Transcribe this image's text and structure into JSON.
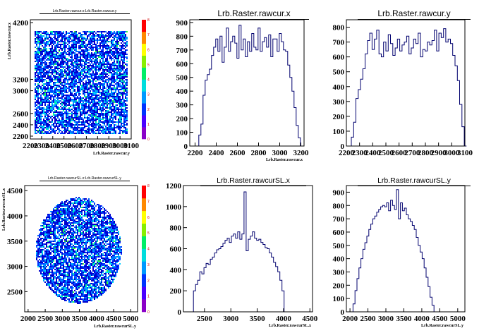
{
  "chart_data": [
    {
      "type": "heatmap",
      "title": "Lrb.Raster.rawcur.x:Lrb.Raster.rawcur.y",
      "xlabel": "Lrb.Raster.rawcur.y",
      "ylabel": "Lrb.Raster.rawcur.x",
      "xlim": [
        2200,
        3100
      ],
      "ylim": [
        2150,
        4250
      ],
      "x_ticks": [
        "2200",
        "2300",
        "2400",
        "2500",
        "2600",
        "2700",
        "2800",
        "2900",
        "3000",
        "3100"
      ],
      "y_ticks": [
        "2200",
        "2400",
        "2600",
        "3000",
        "3200",
        "4200"
      ],
      "y_tick_values": [
        2200,
        2400,
        2600,
        3000,
        3200,
        4200
      ],
      "fill_region": {
        "x": [
          2230,
          3060
        ],
        "y": [
          2260,
          4060
        ]
      },
      "shape": "square",
      "palette_ticks": [
        "0",
        "1",
        "2",
        "3",
        "4",
        "5",
        "6",
        "7",
        "8"
      ],
      "zlim": [
        0,
        8
      ]
    },
    {
      "type": "bar",
      "title": "Lrb.Raster.rawcur.x",
      "xlabel": "Lrb.Raster.rawcur.x",
      "ylabel": "",
      "xlim": [
        2150,
        3230
      ],
      "ylim": [
        0,
        920
      ],
      "x_ticks": [
        "2200",
        "2400",
        "2600",
        "2800",
        "3000",
        "3200"
      ],
      "y_ticks": [
        "0",
        "100",
        "200",
        "300",
        "400",
        "500",
        "600",
        "700",
        "800",
        "900"
      ],
      "bins": {
        "start": 2215,
        "width": 20,
        "values": [
          0,
          80,
          160,
          370,
          480,
          520,
          560,
          660,
          720,
          780,
          690,
          800,
          610,
          720,
          860,
          690,
          760,
          800,
          750,
          640,
          880,
          700,
          780,
          650,
          760,
          690,
          820,
          720,
          700,
          860,
          690,
          760,
          790,
          720,
          810,
          650,
          780,
          780,
          690,
          820,
          760,
          700,
          690,
          590,
          500,
          400,
          280,
          150,
          60,
          0
        ]
      }
    },
    {
      "type": "bar",
      "title": "Lrb.Raster.rawcur.y",
      "xlabel": "",
      "ylabel": "",
      "xlim": [
        2200,
        3100
      ],
      "ylim": [
        0,
        850
      ],
      "x_ticks": [
        "2200",
        "2300",
        "2400",
        "2500",
        "2600",
        "2700",
        "2800",
        "2900",
        "3000",
        "3100"
      ],
      "y_ticks": [
        "0",
        "100",
        "200",
        "300",
        "400",
        "500",
        "600",
        "700",
        "800"
      ],
      "bins": {
        "start": 2220,
        "width": 17.5,
        "values": [
          0,
          60,
          160,
          320,
          380,
          450,
          520,
          620,
          710,
          760,
          650,
          720,
          780,
          620,
          600,
          700,
          640,
          750,
          690,
          610,
          660,
          720,
          640,
          680,
          700,
          740,
          620,
          660,
          720,
          690,
          760,
          600,
          650,
          640,
          700,
          680,
          710,
          780,
          640,
          760,
          730,
          790,
          700,
          720,
          690,
          610,
          540,
          440,
          280,
          130,
          0
        ]
      }
    },
    {
      "type": "heatmap",
      "title": "Lrb.Raster.rawcurSL.x:Lrb.Raster.rawcurSL.y",
      "xlabel": "Lrb.Raster.rawcurSL.y",
      "ylabel": "Lrb.Raster.rawcurSL.x",
      "xlim": [
        1900,
        5200
      ],
      "ylim": [
        2100,
        4600
      ],
      "x_ticks": [
        "2000",
        "2500",
        "3000",
        "3500",
        "4000",
        "4500",
        "5000"
      ],
      "y_ticks": [
        "2500",
        "3000",
        "3500",
        "4000",
        "4500"
      ],
      "y_tick_values": [
        2500,
        3000,
        3500,
        4000,
        4500
      ],
      "fill_region": {
        "cx": 3460,
        "cy": 3330,
        "rx": 1250,
        "ry": 1050
      },
      "shape": "ellipse",
      "palette_ticks": [
        "0",
        "1",
        "2",
        "3",
        "4",
        "5",
        "6",
        "7",
        "8"
      ],
      "zlim": [
        0,
        8
      ]
    },
    {
      "type": "bar",
      "title": "Lrb.Raster.rawcurSL.x",
      "xlabel": "Lrb.Raster.rawcurSL.x",
      "ylabel": "",
      "xlim": [
        2100,
        4550
      ],
      "ylim": [
        0,
        1200
      ],
      "x_ticks": [
        "2500",
        "3000",
        "3500",
        "4000",
        "4500"
      ],
      "y_ticks": [
        "0",
        "200",
        "400",
        "600",
        "800",
        "1000",
        "1200"
      ],
      "bins": {
        "start": 2250,
        "width": 40,
        "values": [
          0,
          200,
          260,
          300,
          380,
          360,
          420,
          460,
          450,
          500,
          520,
          560,
          590,
          600,
          620,
          650,
          680,
          700,
          660,
          720,
          740,
          700,
          760,
          690,
          740,
          1140,
          580,
          690,
          720,
          760,
          700,
          680,
          690,
          660,
          640,
          610,
          600,
          560,
          520,
          470,
          430,
          380,
          300,
          200,
          0
        ]
      }
    },
    {
      "type": "bar",
      "title": "Lrb.Raster.rawcurSL.y",
      "xlabel": "Lrb.Raster.rawcurSL.y",
      "ylabel": "",
      "xlim": [
        1900,
        5200
      ],
      "ylim": [
        0,
        950
      ],
      "x_ticks": [
        "2000",
        "2500",
        "3000",
        "3500",
        "4000",
        "4500",
        "5000"
      ],
      "y_ticks": [
        "0",
        "100",
        "200",
        "300",
        "400",
        "500",
        "600",
        "700",
        "800",
        "900"
      ],
      "bins": {
        "start": 2030,
        "width": 55,
        "values": [
          0,
          60,
          160,
          250,
          330,
          400,
          470,
          520,
          570,
          620,
          660,
          700,
          720,
          750,
          770,
          790,
          800,
          790,
          820,
          760,
          840,
          800,
          770,
          920,
          700,
          820,
          760,
          780,
          730,
          700,
          680,
          650,
          620,
          560,
          500,
          450,
          400,
          330,
          260,
          190,
          110,
          50,
          0
        ]
      }
    }
  ]
}
